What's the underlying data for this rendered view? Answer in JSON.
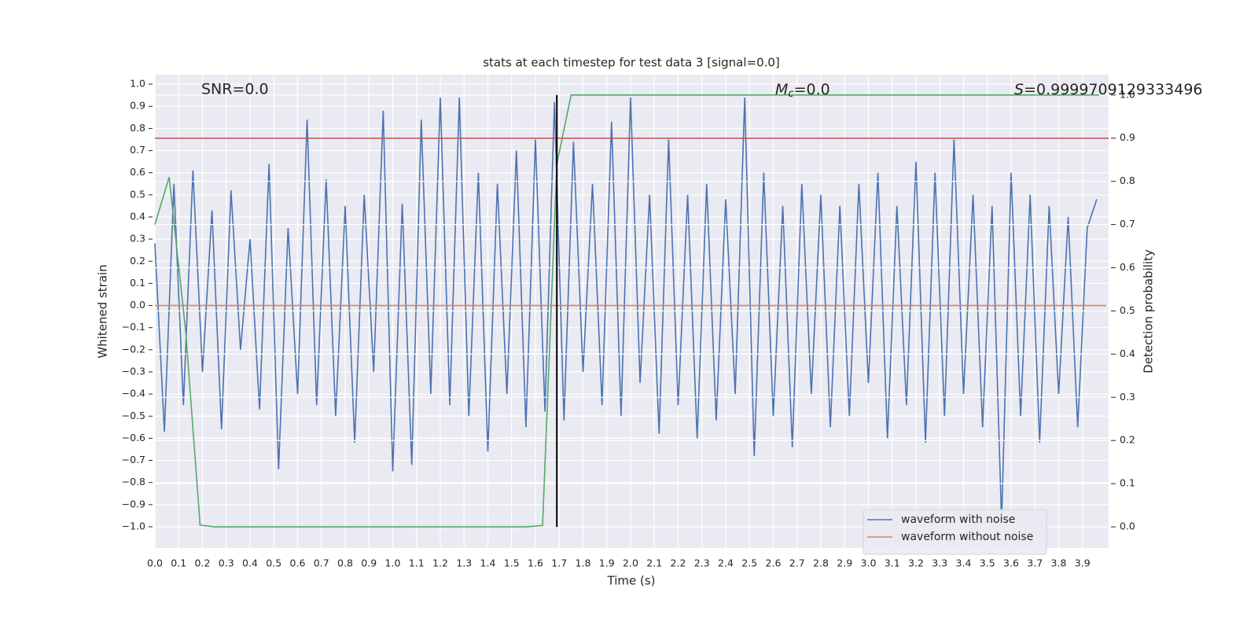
{
  "chart_data": {
    "type": "line",
    "title": "stats at each timestep for test data 3 [signal=0.0]",
    "xlabel": "Time (s)",
    "ylabel": "Whitened strain",
    "y2label": "Detection probability",
    "annotations": [
      {
        "text": "SNR=0.0"
      },
      {
        "italic": "M",
        "subscript": "c",
        "text": "=0.0"
      },
      {
        "italic": "S",
        "text": "=0.9999709129333496"
      }
    ],
    "xlim": [
      0,
      4.01
    ],
    "ylim": [
      -1.096,
      1.043
    ],
    "y2lim": [
      -0.049,
      1.047
    ],
    "xticks": [
      {
        "value": 0,
        "label": "0.0"
      },
      0.1,
      0.2,
      0.3,
      0.4,
      0.5,
      0.6,
      0.7,
      0.8,
      0.9,
      {
        "value": 1,
        "label": "1.0"
      },
      1.1,
      1.2,
      1.3,
      1.4,
      1.5,
      1.6,
      1.7,
      1.8,
      1.9,
      {
        "value": 2,
        "label": "2.0"
      },
      2.1,
      2.2,
      2.3,
      2.4,
      2.5,
      2.6,
      2.7,
      2.8,
      2.9,
      {
        "value": 3,
        "label": "3.0"
      },
      3.1,
      3.2,
      3.3,
      3.4,
      3.5,
      3.6,
      3.7,
      3.8,
      3.9
    ],
    "yticks": [
      {
        "value": -1,
        "label": "−1.0"
      },
      {
        "value": -0.9,
        "label": "−0.9"
      },
      {
        "value": -0.8,
        "label": "−0.8"
      },
      {
        "value": -0.7,
        "label": "−0.7"
      },
      {
        "value": -0.6,
        "label": "−0.6"
      },
      {
        "value": -0.5,
        "label": "−0.5"
      },
      {
        "value": -0.4,
        "label": "−0.4"
      },
      {
        "value": -0.3,
        "label": "−0.3"
      },
      {
        "value": -0.2,
        "label": "−0.2"
      },
      {
        "value": -0.1,
        "label": "−0.1"
      },
      {
        "value": 0,
        "label": "0.0"
      },
      0.1,
      0.2,
      0.3,
      0.4,
      0.5,
      0.6,
      0.7,
      0.8,
      0.9,
      {
        "value": 1,
        "label": "1.0"
      }
    ],
    "y2ticks": [
      {
        "value": 0,
        "label": "0.0"
      },
      0.1,
      0.2,
      0.3,
      0.4,
      0.5,
      0.6,
      0.7,
      0.8,
      0.9,
      {
        "value": 1,
        "label": "1.0"
      }
    ],
    "grid": true,
    "threshold": {
      "value": 0.9,
      "axis": "y2",
      "color": "#c44e52"
    },
    "marker_x": {
      "value": 1.69,
      "color": "#000000"
    },
    "legend": "lower right",
    "series": [
      {
        "name": "waveform with noise",
        "color": "#4c72b0",
        "x": [
          0,
          0.04,
          0.08,
          0.12,
          0.16,
          0.2,
          0.24,
          0.28,
          0.32,
          0.36,
          0.4,
          0.44,
          0.48,
          0.52,
          0.56,
          0.6,
          0.64,
          0.68,
          0.72,
          0.76,
          0.8,
          0.84,
          0.88,
          0.92,
          0.96,
          1,
          1.04,
          1.08,
          1.12,
          1.16,
          1.2,
          1.24,
          1.28,
          1.32,
          1.36,
          1.4,
          1.44,
          1.48,
          1.52,
          1.56,
          1.6,
          1.64,
          1.68,
          1.72,
          1.76,
          1.8,
          1.84,
          1.88,
          1.92,
          1.96,
          2,
          2.04,
          2.08,
          2.12,
          2.16,
          2.2,
          2.24,
          2.28,
          2.32,
          2.36,
          2.4,
          2.44,
          2.48,
          2.52,
          2.56,
          2.6,
          2.64,
          2.68,
          2.72,
          2.76,
          2.8,
          2.84,
          2.88,
          2.92,
          2.96,
          3,
          3.04,
          3.08,
          3.12,
          3.16,
          3.2,
          3.24,
          3.28,
          3.32,
          3.36,
          3.4,
          3.44,
          3.48,
          3.52,
          3.56,
          3.6,
          3.64,
          3.68,
          3.72,
          3.76,
          3.8,
          3.84,
          3.88,
          3.92,
          3.96
        ],
        "values": [
          0.28,
          -0.57,
          0.55,
          -0.45,
          0.61,
          -0.3,
          0.43,
          -0.56,
          0.52,
          -0.2,
          0.3,
          -0.47,
          0.64,
          -0.74,
          0.35,
          -0.4,
          0.84,
          -0.45,
          0.57,
          -0.5,
          0.45,
          -0.62,
          0.5,
          -0.3,
          0.88,
          -0.75,
          0.46,
          -0.72,
          0.84,
          -0.4,
          0.94,
          -0.45,
          0.94,
          -0.5,
          0.6,
          -0.66,
          0.55,
          -0.4,
          0.7,
          -0.55,
          0.75,
          -0.48,
          0.92,
          -0.52,
          0.74,
          -0.3,
          0.55,
          -0.45,
          0.83,
          -0.5,
          0.94,
          -0.35,
          0.5,
          -0.58,
          0.75,
          -0.45,
          0.5,
          -0.6,
          0.55,
          -0.52,
          0.48,
          -0.4,
          0.94,
          -0.68,
          0.6,
          -0.5,
          0.45,
          -0.64,
          0.55,
          -0.4,
          0.5,
          -0.55,
          0.45,
          -0.5,
          0.55,
          -0.35,
          0.6,
          -0.6,
          0.45,
          -0.45,
          0.65,
          -0.62,
          0.6,
          -0.5,
          0.75,
          -0.4,
          0.5,
          -0.55,
          0.45,
          -0.98,
          0.6,
          -0.5,
          0.5,
          -0.62,
          0.45,
          -0.4,
          0.4,
          -0.55,
          0.35,
          0.48
        ]
      },
      {
        "name": "waveform without noise",
        "color": "#dd8452",
        "x": [
          0,
          4.0
        ],
        "values": [
          0,
          0
        ]
      },
      {
        "color": "#55a868",
        "axis": "y2",
        "x": [
          0,
          0.06,
          0.13,
          0.19,
          0.25,
          1.56,
          1.63,
          1.69,
          1.75,
          3.97
        ],
        "values": [
          0.7,
          0.81,
          0.45,
          0.004,
          0.0,
          0.0,
          0.003,
          0.84,
          1.0,
          1.0
        ]
      }
    ]
  }
}
